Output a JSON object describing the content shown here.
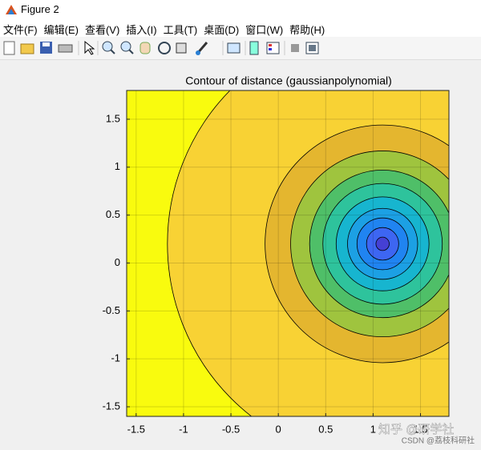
{
  "window": {
    "title": "Figure 2",
    "menu": [
      "文件(F)",
      "编辑(E)",
      "查看(V)",
      "插入(I)",
      "工具(T)",
      "桌面(D)",
      "窗口(W)",
      "帮助(H)"
    ]
  },
  "chart_data": {
    "type": "contour",
    "title": "Contour of distance (gaussianpolynomial)",
    "xlim": [
      -1.6,
      1.8
    ],
    "ylim": [
      -1.6,
      1.8
    ],
    "xticks": [
      -1.5,
      -1,
      -0.5,
      0,
      0.5,
      1,
      1.5
    ],
    "yticks": [
      -1.5,
      -1,
      -0.5,
      0,
      0.5,
      1,
      1.5
    ],
    "grid": true,
    "background": "#f9fb0e",
    "center": [
      1.1,
      0.2
    ],
    "contours": {
      "radius": [
        2.27,
        1.24,
        0.97,
        0.77,
        0.63,
        0.49,
        0.37,
        0.27,
        0.17,
        0.07
      ],
      "colors": [
        "#f8d234",
        "#e4b62f",
        "#9fc43e",
        "#4fbf68",
        "#2ec39c",
        "#17b5cf",
        "#1ca0e4",
        "#2084f1",
        "#3d66f2",
        "#4540d4"
      ]
    }
  },
  "watermark": [
    "知乎 @研学社",
    "CSDN @荔枝科研社"
  ]
}
